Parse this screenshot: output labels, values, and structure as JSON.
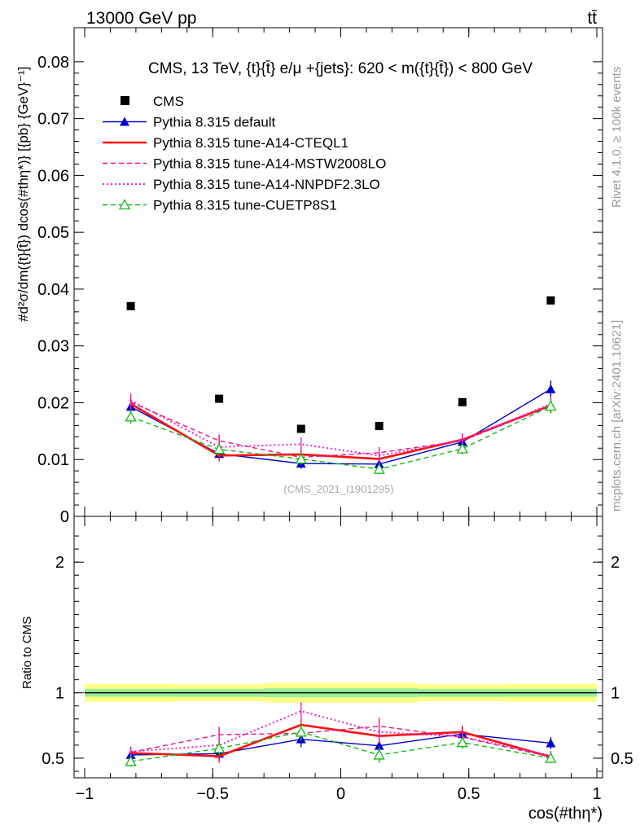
{
  "header": {
    "left": "13000 GeV pp",
    "right": "tt̄"
  },
  "side": {
    "rivet": "Rivet 4.1.0, ≥ 100k events",
    "mcplots": "mcplots.cern.ch [arXiv:2401.10621]"
  },
  "chart_data": [
    {
      "type": "line",
      "panel": "main",
      "title": "CMS, 13 TeV, {t}{t̄} e/μ +{jets}: 620 < m({t}{t̄}) < 800 GeV",
      "watermark": "(CMS_2021_I1901295)",
      "ylabel": "#d²σ/dm({t}{t̄}) dcos(#thη*)} [{pb} {GeV}⁻¹]",
      "xlabel": "cos(#thη*)",
      "xlim": [
        -1.0,
        1.0
      ],
      "ylim": [
        0.0,
        0.086
      ],
      "yticks": [
        0.0,
        0.01,
        0.02,
        0.03,
        0.04,
        0.05,
        0.06,
        0.07,
        0.08
      ],
      "ytick_labels": [
        "0",
        "0.01",
        "0.02",
        "0.03",
        "0.04",
        "0.05",
        "0.06",
        "0.07",
        "0.08"
      ],
      "x": [
        -0.82,
        -0.475,
        -0.155,
        0.15,
        0.475,
        0.82
      ],
      "legend": "top-left",
      "series": [
        {
          "name": "CMS",
          "style": "data",
          "color": "#000000",
          "values": [
            0.037,
            0.0207,
            0.0154,
            0.0159,
            0.0201,
            0.038
          ]
        },
        {
          "name": "Pythia 8.315 default",
          "style": "solid-triangle",
          "color": "#0000cc",
          "values": [
            0.0193,
            0.011,
            0.0093,
            0.0092,
            0.0131,
            0.0224
          ],
          "err": [
            0.0012,
            0.001,
            0.0009,
            0.0009,
            0.0011,
            0.0015
          ]
        },
        {
          "name": "Pythia 8.315 tune-A14-CTEQL1",
          "style": "solid-thick",
          "color": "#ff1111",
          "values": [
            0.0198,
            0.0107,
            0.0109,
            0.0101,
            0.0135,
            0.0195
          ],
          "err": [
            0.0012,
            0.001,
            0.001,
            0.0009,
            0.0011,
            0.0013
          ]
        },
        {
          "name": "Pythia 8.315 tune-A14-MSTW2008LO",
          "style": "dashed",
          "color": "#ee1177",
          "values": [
            0.0201,
            0.0133,
            0.0104,
            0.0112,
            0.0133,
            0.0195
          ],
          "err": [
            0.0012,
            0.0011,
            0.001,
            0.001,
            0.0011,
            0.0013
          ]
        },
        {
          "name": "Pythia 8.315 tune-A14-NNPDF2.3LO",
          "style": "dotted",
          "color": "#ee22cc",
          "values": [
            0.0204,
            0.0122,
            0.0127,
            0.0107,
            0.0134,
            0.0198
          ],
          "err": [
            0.0012,
            0.0011,
            0.0012,
            0.001,
            0.0011,
            0.0013
          ]
        },
        {
          "name": "Pythia 8.315 tune-CUETP8S1",
          "style": "dashed-opentriangle",
          "color": "#11bb11",
          "values": [
            0.0175,
            0.0118,
            0.0101,
            0.0083,
            0.0119,
            0.0194
          ],
          "err": [
            0.0012,
            0.001,
            0.001,
            0.0009,
            0.001,
            0.0013
          ]
        }
      ]
    },
    {
      "type": "line",
      "panel": "ratio",
      "ylabel": "Ratio to CMS",
      "xlabel": "cos(#thη*)",
      "xlim": [
        -1.0,
        1.0
      ],
      "ylim": [
        0.35,
        2.35
      ],
      "yticks": [
        0.5,
        1,
        2
      ],
      "ytick_labels": [
        "0.5",
        "1",
        "2"
      ],
      "xticks": [
        -1,
        -0.5,
        0,
        0.5,
        1
      ],
      "xtick_labels": [
        "−1",
        "−0.5",
        "0",
        "0.5",
        "1"
      ],
      "x": [
        -0.82,
        -0.475,
        -0.155,
        0.15,
        0.475,
        0.82
      ],
      "band_inner": [
        0.03,
        0.03,
        0.035,
        0.035,
        0.03,
        0.03
      ],
      "band_outer": [
        0.07,
        0.065,
        0.075,
        0.075,
        0.065,
        0.07
      ],
      "series": [
        {
          "name": "Pythia 8.315 default",
          "color": "#0000cc",
          "values": [
            0.525,
            0.535,
            0.645,
            0.595,
            0.685,
            0.615
          ],
          "err": [
            0.04,
            0.05,
            0.06,
            0.06,
            0.05,
            0.045
          ]
        },
        {
          "name": "Pythia 8.315 tune-A14-CTEQL1",
          "color": "#ff1111",
          "values": [
            0.54,
            0.515,
            0.755,
            0.67,
            0.7,
            0.51
          ],
          "err": [
            0.04,
            0.05,
            0.06,
            0.06,
            0.05,
            0.035
          ]
        },
        {
          "name": "Pythia 8.315 tune-A14-MSTW2008LO",
          "color": "#ee1177",
          "values": [
            0.545,
            0.68,
            0.69,
            0.745,
            0.66,
            0.51
          ],
          "err": [
            0.04,
            0.06,
            0.06,
            0.065,
            0.05,
            0.035
          ]
        },
        {
          "name": "Pythia 8.315 tune-A14-NNPDF2.3LO",
          "color": "#ee22cc",
          "values": [
            0.55,
            0.6,
            0.86,
            0.7,
            0.665,
            0.52
          ],
          "err": [
            0.04,
            0.05,
            0.07,
            0.065,
            0.05,
            0.035
          ]
        },
        {
          "name": "Pythia 8.315 tune-CUETP8S1",
          "color": "#11bb11",
          "values": [
            0.475,
            0.575,
            0.7,
            0.525,
            0.62,
            0.5
          ],
          "err": [
            0.04,
            0.05,
            0.06,
            0.06,
            0.05,
            0.035
          ]
        }
      ]
    }
  ]
}
